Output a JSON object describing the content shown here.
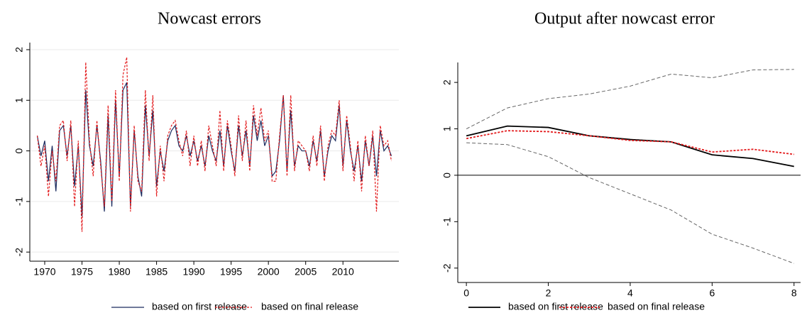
{
  "chart_data": [
    {
      "type": "line",
      "title": "Nowcast errors",
      "x": [
        1969,
        1969.5,
        1970,
        1970.5,
        1971,
        1971.5,
        1972,
        1972.5,
        1973,
        1973.5,
        1974,
        1974.5,
        1975,
        1975.5,
        1976,
        1976.5,
        1977,
        1977.5,
        1978,
        1978.5,
        1979,
        1979.5,
        1980,
        1980.5,
        1981,
        1981.5,
        1982,
        1982.5,
        1983,
        1983.5,
        1984,
        1984.5,
        1985,
        1985.5,
        1986,
        1986.5,
        1987,
        1987.5,
        1988,
        1988.5,
        1989,
        1989.5,
        1990,
        1990.5,
        1991,
        1991.5,
        1992,
        1992.5,
        1993,
        1993.5,
        1994,
        1994.5,
        1995,
        1995.5,
        1996,
        1996.5,
        1997,
        1997.5,
        1998,
        1998.5,
        1999,
        1999.5,
        2000,
        2000.5,
        2001,
        2001.5,
        2002,
        2002.5,
        2003,
        2003.5,
        2004,
        2004.5,
        2005,
        2005.5,
        2006,
        2006.5,
        2007,
        2007.5,
        2008,
        2008.5,
        2009,
        2009.5,
        2010,
        2010.5,
        2011,
        2011.5,
        2012,
        2012.5,
        2013,
        2013.5,
        2014,
        2014.5,
        2015,
        2015.5,
        2016,
        2016.5
      ],
      "series": [
        {
          "name": "based on first release",
          "color": "#1a2a5e",
          "dash": "none",
          "values": [
            0.3,
            -0.1,
            0.2,
            -0.6,
            0.1,
            -0.8,
            0.4,
            0.5,
            -0.1,
            0.5,
            -0.7,
            0.1,
            -1.3,
            1.2,
            0.1,
            -0.3,
            0.5,
            -0.2,
            -1.2,
            0.7,
            -1.1,
            1.0,
            -0.5,
            1.2,
            1.35,
            -1.1,
            0.4,
            -0.5,
            -0.9,
            0.9,
            -0.1,
            0.8,
            -0.7,
            0.0,
            -0.4,
            0.2,
            0.4,
            0.5,
            0.1,
            0.0,
            0.3,
            -0.1,
            0.2,
            -0.2,
            0.1,
            -0.3,
            0.3,
            0.0,
            -0.2,
            0.4,
            -0.3,
            0.5,
            0.0,
            -0.4,
            0.5,
            -0.1,
            0.4,
            -0.3,
            0.7,
            0.2,
            0.6,
            0.1,
            0.3,
            -0.5,
            -0.4,
            0.2,
            1.1,
            -0.4,
            0.8,
            -0.3,
            0.1,
            0.0,
            0.0,
            -0.3,
            0.2,
            -0.2,
            0.4,
            -0.5,
            0.0,
            0.3,
            0.2,
            0.9,
            -0.3,
            0.6,
            0.0,
            -0.4,
            0.1,
            -0.6,
            0.2,
            -0.3,
            0.3,
            -0.5,
            0.4,
            0.0,
            0.1,
            -0.1
          ]
        },
        {
          "name": "based on final release",
          "color": "#e31a1c",
          "dash": "3,2",
          "values": [
            0.3,
            -0.3,
            0.1,
            -0.9,
            0.0,
            -0.6,
            0.5,
            0.6,
            -0.2,
            0.6,
            -1.1,
            0.2,
            -1.6,
            1.75,
            0.2,
            -0.5,
            0.6,
            -0.3,
            -1.1,
            0.9,
            -1.0,
            1.2,
            -0.6,
            1.5,
            1.85,
            -1.2,
            0.5,
            -0.6,
            -0.8,
            1.2,
            -0.2,
            1.1,
            -0.9,
            0.1,
            -0.6,
            0.3,
            0.5,
            0.6,
            0.2,
            -0.1,
            0.4,
            -0.3,
            0.3,
            -0.3,
            0.2,
            -0.4,
            0.5,
            0.1,
            -0.3,
            0.8,
            -0.4,
            0.6,
            0.1,
            -0.5,
            0.7,
            -0.2,
            0.6,
            -0.4,
            0.9,
            0.3,
            0.85,
            0.2,
            0.4,
            -0.6,
            -0.6,
            0.3,
            1.1,
            -0.5,
            1.1,
            -0.4,
            0.2,
            0.1,
            0.0,
            -0.4,
            0.3,
            -0.3,
            0.5,
            -0.6,
            0.1,
            0.4,
            0.3,
            1.0,
            -0.4,
            0.7,
            0.1,
            -0.6,
            0.2,
            -0.8,
            0.3,
            -0.3,
            0.4,
            -1.2,
            0.5,
            0.1,
            0.2,
            -0.2
          ]
        }
      ],
      "xlim": [
        1968,
        2017.5
      ],
      "xticks": [
        1970,
        1975,
        1980,
        1985,
        1990,
        1995,
        2000,
        2005,
        2010
      ],
      "ylim": [
        -2.18,
        2.14
      ],
      "yticks": [
        -2,
        -1,
        0,
        1,
        2
      ],
      "grid": true
    },
    {
      "type": "line",
      "title": "Output after nowcast error",
      "x": [
        0,
        1,
        2,
        3,
        4,
        5,
        6,
        7,
        8
      ],
      "series": [
        {
          "name": "based on first release",
          "color": "#000000",
          "dash": "none",
          "values": [
            0.85,
            1.06,
            1.03,
            0.85,
            0.77,
            0.72,
            0.44,
            0.36,
            0.19
          ]
        },
        {
          "name": "based on final release",
          "color": "#e31a1c",
          "dash": "3,2",
          "values": [
            0.79,
            0.96,
            0.94,
            0.85,
            0.75,
            0.72,
            0.5,
            0.56,
            0.45
          ]
        }
      ],
      "bands": [
        {
          "color": "#666666",
          "values": [
            1.0,
            1.45,
            1.65,
            1.75,
            1.92,
            2.18,
            2.1,
            2.27,
            2.28
          ]
        },
        {
          "color": "#666666",
          "values": [
            0.7,
            0.66,
            0.4,
            -0.05,
            -0.4,
            -0.75,
            -1.27,
            -1.57,
            -1.9
          ]
        }
      ],
      "reference_line": 0,
      "xlim": [
        -0.21,
        8.16
      ],
      "xticks": [
        0,
        2,
        4,
        6,
        8
      ],
      "ylim": [
        -2.31,
        2.43
      ],
      "yticks": [
        -2,
        -1,
        0,
        1,
        2
      ],
      "grid": false
    }
  ]
}
